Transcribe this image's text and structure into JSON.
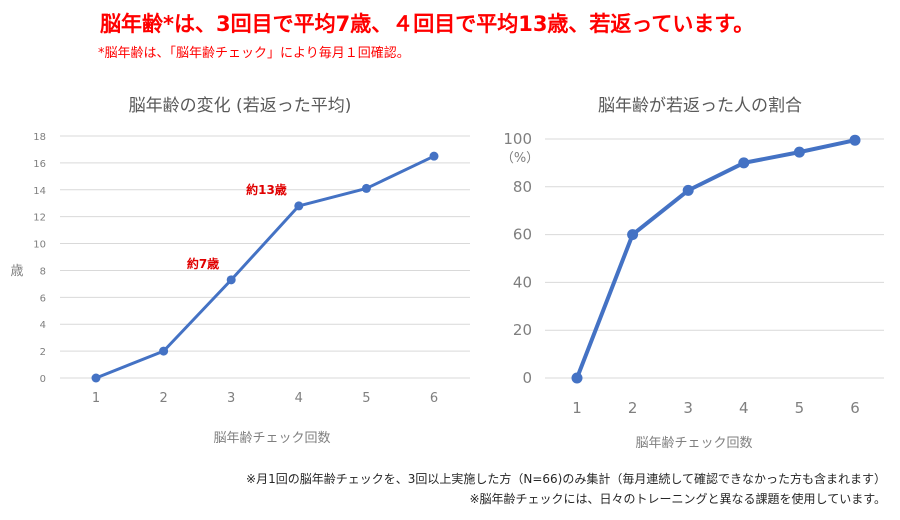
{
  "headline": "脳年齢*は、3回目で平均7歳、４回目で平均13歳、若返っています。",
  "subnote": "*脳年齢は、「脳年齢チェック」により毎月１回確認。",
  "footnotes": [
    "※月1回の脳年齢チェックを、3回以上実施した方（N=66)のみ集計（毎月連続して確認できなかった方も含まれます）",
    "※脳年齢チェックには、日々のトレーニングと異なる課題を使用しています。"
  ],
  "colors": {
    "line": "#4472c4",
    "highlight": "#ff0000",
    "grid": "#d9d9d9"
  },
  "chart_data": [
    {
      "type": "line",
      "title": "脳年齢の変化 (若返った平均)",
      "xlabel": "脳年齢チェック回数",
      "ylabel": "歳",
      "x": [
        1,
        2,
        3,
        4,
        5,
        6
      ],
      "values": [
        0,
        2,
        7.3,
        12.8,
        14.1,
        16.5
      ],
      "ylim": [
        0,
        18
      ],
      "yticks": [
        0,
        2,
        4,
        6,
        8,
        10,
        12,
        14,
        16,
        18
      ],
      "grid": true,
      "annotations": [
        {
          "x": 3,
          "text": "約7歳"
        },
        {
          "x": 4,
          "text": "約13歳"
        }
      ]
    },
    {
      "type": "line",
      "title": "脳年齢が若返った人の割合",
      "xlabel": "脳年齢チェック回数",
      "ylabel": "（%）",
      "x": [
        1,
        2,
        3,
        4,
        5,
        6
      ],
      "values": [
        0,
        60,
        78.5,
        90,
        94.5,
        99.5
      ],
      "ylim": [
        0,
        100
      ],
      "yticks": [
        0,
        20,
        40,
        60,
        80,
        100
      ],
      "grid": true
    }
  ]
}
